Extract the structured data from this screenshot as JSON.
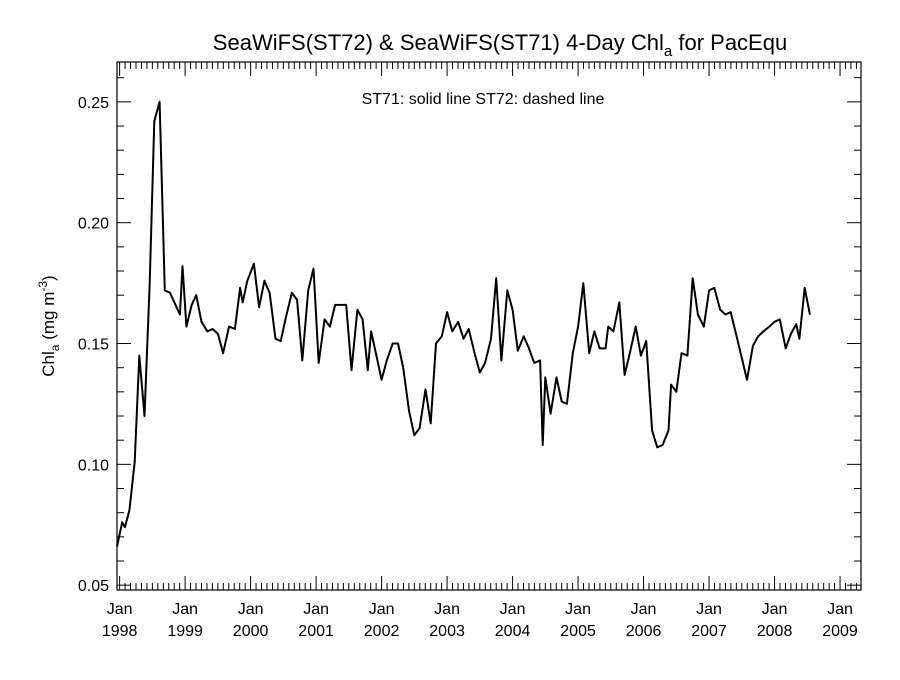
{
  "chart_data": {
    "type": "line",
    "title": {
      "text": "SeaWiFS(ST72) & SeaWiFS(ST71) 4-Day Chl",
      "subscript": "a",
      "suffix": " for PacEqu"
    },
    "annotation": "ST71: solid line   ST72: dashed line",
    "ylabel": {
      "main": "Chl",
      "sub": "a",
      "units_pre": " (mg m",
      "units_sup": "-3",
      "units_post": ")"
    },
    "ylim": [
      0.048,
      0.2665
    ],
    "y_ticks": [
      0.05,
      0.1,
      0.15,
      0.2,
      0.25
    ],
    "y_tick_labels": [
      "0.05",
      "0.10",
      "0.15",
      "0.20",
      "0.25"
    ],
    "xlim": [
      1997.96,
      2009.32
    ],
    "x_ticks": [
      {
        "year": 1998,
        "month": "Jan",
        "label": "1998"
      },
      {
        "year": 1999,
        "month": "Jan",
        "label": "1999"
      },
      {
        "year": 2000,
        "month": "Jan",
        "label": "2000"
      },
      {
        "year": 2001,
        "month": "Jan",
        "label": "2001"
      },
      {
        "year": 2002,
        "month": "Jan",
        "label": "2002"
      },
      {
        "year": 2003,
        "month": "Jan",
        "label": "2003"
      },
      {
        "year": 2004,
        "month": "Jan",
        "label": "2004"
      },
      {
        "year": 2005,
        "month": "Jan",
        "label": "2005"
      },
      {
        "year": 2006,
        "month": "Jan",
        "label": "2006"
      },
      {
        "year": 2007,
        "month": "Jan",
        "label": "2007"
      },
      {
        "year": 2008,
        "month": "Jan",
        "label": "2008"
      },
      {
        "year": 2009,
        "month": "Jan",
        "label": "2009"
      }
    ],
    "grid": false,
    "series": [
      {
        "name": "ST71",
        "style": "solid",
        "color": "#000000",
        "points": [
          [
            1997.96,
            0.066
          ],
          [
            1998.04,
            0.076
          ],
          [
            1998.08,
            0.074
          ],
          [
            1998.15,
            0.081
          ],
          [
            1998.23,
            0.101
          ],
          [
            1998.3,
            0.145
          ],
          [
            1998.38,
            0.12
          ],
          [
            1998.46,
            0.175
          ],
          [
            1998.53,
            0.242
          ],
          [
            1998.61,
            0.25
          ],
          [
            1998.69,
            0.172
          ],
          [
            1998.77,
            0.171
          ],
          [
            1998.92,
            0.162
          ],
          [
            1998.96,
            0.182
          ],
          [
            1999.02,
            0.157
          ],
          [
            1999.1,
            0.166
          ],
          [
            1999.17,
            0.17
          ],
          [
            1999.25,
            0.159
          ],
          [
            1999.34,
            0.155
          ],
          [
            1999.42,
            0.156
          ],
          [
            1999.5,
            0.154
          ],
          [
            1999.58,
            0.146
          ],
          [
            1999.67,
            0.157
          ],
          [
            1999.76,
            0.156
          ],
          [
            1999.84,
            0.173
          ],
          [
            1999.88,
            0.167
          ],
          [
            1999.95,
            0.176
          ],
          [
            2000.05,
            0.183
          ],
          [
            2000.13,
            0.165
          ],
          [
            2000.21,
            0.176
          ],
          [
            2000.29,
            0.171
          ],
          [
            2000.38,
            0.152
          ],
          [
            2000.46,
            0.151
          ],
          [
            2000.54,
            0.161
          ],
          [
            2000.63,
            0.171
          ],
          [
            2000.71,
            0.168
          ],
          [
            2000.79,
            0.143
          ],
          [
            2000.88,
            0.172
          ],
          [
            2000.96,
            0.181
          ],
          [
            2001.04,
            0.142
          ],
          [
            2001.13,
            0.16
          ],
          [
            2001.21,
            0.157
          ],
          [
            2001.29,
            0.166
          ],
          [
            2001.38,
            0.166
          ],
          [
            2001.46,
            0.166
          ],
          [
            2001.54,
            0.139
          ],
          [
            2001.63,
            0.164
          ],
          [
            2001.71,
            0.16
          ],
          [
            2001.79,
            0.139
          ],
          [
            2001.84,
            0.155
          ],
          [
            2001.92,
            0.145
          ],
          [
            2002.0,
            0.135
          ],
          [
            2002.08,
            0.143
          ],
          [
            2002.17,
            0.15
          ],
          [
            2002.25,
            0.15
          ],
          [
            2002.33,
            0.14
          ],
          [
            2002.42,
            0.122
          ],
          [
            2002.5,
            0.112
          ],
          [
            2002.58,
            0.115
          ],
          [
            2002.67,
            0.131
          ],
          [
            2002.75,
            0.117
          ],
          [
            2002.83,
            0.15
          ],
          [
            2002.92,
            0.153
          ],
          [
            2003.0,
            0.163
          ],
          [
            2003.08,
            0.155
          ],
          [
            2003.17,
            0.159
          ],
          [
            2003.25,
            0.152
          ],
          [
            2003.33,
            0.156
          ],
          [
            2003.42,
            0.146
          ],
          [
            2003.5,
            0.138
          ],
          [
            2003.58,
            0.142
          ],
          [
            2003.67,
            0.152
          ],
          [
            2003.75,
            0.177
          ],
          [
            2003.83,
            0.143
          ],
          [
            2003.92,
            0.172
          ],
          [
            2004.0,
            0.164
          ],
          [
            2004.08,
            0.147
          ],
          [
            2004.17,
            0.153
          ],
          [
            2004.25,
            0.148
          ],
          [
            2004.33,
            0.142
          ],
          [
            2004.42,
            0.143
          ],
          [
            2004.46,
            0.108
          ],
          [
            2004.5,
            0.136
          ],
          [
            2004.58,
            0.121
          ],
          [
            2004.67,
            0.136
          ],
          [
            2004.75,
            0.126
          ],
          [
            2004.83,
            0.125
          ],
          [
            2004.92,
            0.146
          ],
          [
            2005.0,
            0.157
          ],
          [
            2005.08,
            0.175
          ],
          [
            2005.17,
            0.146
          ],
          [
            2005.25,
            0.155
          ],
          [
            2005.33,
            0.148
          ],
          [
            2005.42,
            0.148
          ],
          [
            2005.46,
            0.157
          ],
          [
            2005.54,
            0.155
          ],
          [
            2005.63,
            0.167
          ],
          [
            2005.71,
            0.137
          ],
          [
            2005.79,
            0.146
          ],
          [
            2005.88,
            0.157
          ],
          [
            2005.96,
            0.145
          ],
          [
            2006.04,
            0.151
          ],
          [
            2006.13,
            0.114
          ],
          [
            2006.21,
            0.107
          ],
          [
            2006.29,
            0.108
          ],
          [
            2006.38,
            0.114
          ],
          [
            2006.42,
            0.133
          ],
          [
            2006.5,
            0.13
          ],
          [
            2006.58,
            0.146
          ],
          [
            2006.67,
            0.145
          ],
          [
            2006.75,
            0.177
          ],
          [
            2006.83,
            0.162
          ],
          [
            2006.92,
            0.157
          ],
          [
            2007.0,
            0.172
          ],
          [
            2007.08,
            0.173
          ],
          [
            2007.17,
            0.164
          ],
          [
            2007.25,
            0.162
          ],
          [
            2007.33,
            0.163
          ],
          [
            2007.42,
            0.153
          ],
          [
            2007.5,
            0.144
          ],
          [
            2007.58,
            0.135
          ],
          [
            2007.67,
            0.149
          ],
          [
            2007.75,
            0.153
          ],
          [
            2007.83,
            0.155
          ],
          [
            2007.92,
            0.157
          ],
          [
            2008.0,
            0.159
          ],
          [
            2008.08,
            0.16
          ],
          [
            2008.17,
            0.148
          ],
          [
            2008.25,
            0.154
          ],
          [
            2008.33,
            0.158
          ],
          [
            2008.38,
            0.152
          ],
          [
            2008.46,
            0.173
          ],
          [
            2008.54,
            0.162
          ]
        ]
      }
    ]
  }
}
